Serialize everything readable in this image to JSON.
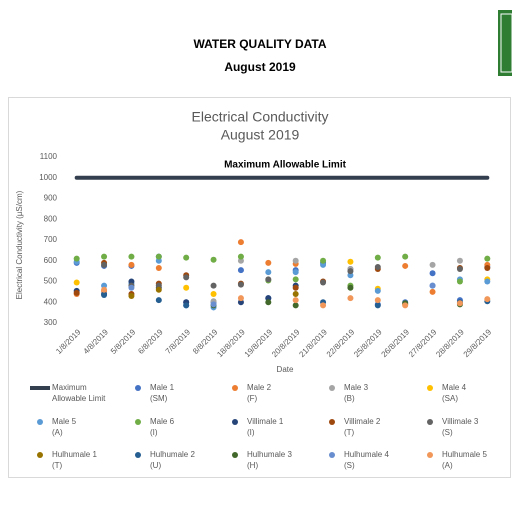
{
  "header": {
    "title": "WATER QUALITY DATA",
    "subtitle": "August 2019"
  },
  "chart_data": {
    "type": "scatter",
    "title": "Electrical Conductivity",
    "subtitle": "August 2019",
    "y_label": "Electrical Conductivity (µS/cm)",
    "x_label": "Date",
    "annotation": "Maximum Allowable Limit",
    "categories": [
      "1/8/2019",
      "4/8/2019",
      "5/8/2019",
      "6/8/2019",
      "7/8/2019",
      "8/8/2019",
      "18/8/2019",
      "19/8/2019",
      "20/8/2019",
      "21/8/2019",
      "22/8/2019",
      "25/8/2019",
      "26/8/2019",
      "27/8/2019",
      "28/8/2019",
      "29/8/2019"
    ],
    "ylim": [
      300,
      1100
    ],
    "yticks": [
      300,
      400,
      500,
      600,
      700,
      800,
      900,
      1000,
      1100
    ],
    "grid": false,
    "series": [
      {
        "name": "Maximum Allowable Limit",
        "color": "#333f4f",
        "kind": "line",
        "values": [
          1000,
          1000,
          1000,
          1000,
          1000,
          1000,
          1000,
          1000,
          1000,
          1000,
          1000,
          1000,
          1000,
          1000,
          1000,
          1000
        ]
      },
      {
        "name": "Male 1 (SM)",
        "color": "#4472c4",
        "values": [
          590,
          575,
          575,
          620,
          400,
          400,
          555,
          420,
          555,
          590,
          560,
          390,
          400,
          540,
          410,
          570
        ]
      },
      {
        "name": "Male 2 (F)",
        "color": "#ed7d31",
        "values": [
          440,
          455,
          580,
          565,
          null,
          null,
          690,
          590,
          585,
          null,
          null,
          null,
          575,
          450,
          null,
          580
        ]
      },
      {
        "name": "Male 3 (B)",
        "color": "#a5a5a5",
        "values": [
          null,
          null,
          null,
          null,
          null,
          405,
          600,
          null,
          600,
          null,
          560,
          null,
          null,
          580,
          600,
          null
        ]
      },
      {
        "name": "Male 4 (SA)",
        "color": "#ffc000",
        "values": [
          495,
          null,
          null,
          null,
          470,
          440,
          null,
          null,
          null,
          null,
          595,
          465,
          null,
          null,
          null,
          510
        ]
      },
      {
        "name": "Male 5 (A)",
        "color": "#5b9bd5",
        "values": [
          595,
          480,
          490,
          600,
          385,
          375,
          null,
          545,
          545,
          580,
          530,
          455,
          null,
          480,
          510,
          500
        ]
      },
      {
        "name": "Male 6 (I)",
        "color": "#70ad47",
        "values": [
          610,
          620,
          620,
          620,
          615,
          605,
          620,
          505,
          510,
          600,
          480,
          615,
          620,
          null,
          500,
          610
        ]
      },
      {
        "name": "Villimale 1 (I)",
        "color": "#264478",
        "values": [
          455,
          440,
          500,
          470,
          400,
          null,
          400,
          420,
          480,
          null,
          null,
          null,
          null,
          null,
          null,
          null
        ]
      },
      {
        "name": "Villimale 2 (T)",
        "color": "#9e480e",
        "values": [
          445,
          590,
          440,
          490,
          530,
          null,
          490,
          null,
          470,
          500,
          null,
          560,
          null,
          null,
          565,
          565
        ]
      },
      {
        "name": "Villimale 3 (S)",
        "color": "#636363",
        "values": [
          null,
          580,
          480,
          480,
          520,
          480,
          485,
          510,
          null,
          495,
          550,
          570,
          null,
          null,
          560,
          null
        ]
      },
      {
        "name": "Hulhumale 1 (T)",
        "color": "#997300",
        "values": [
          null,
          null,
          430,
          460,
          null,
          null,
          null,
          null,
          440,
          null,
          null,
          null,
          390,
          null,
          null,
          null
        ]
      },
      {
        "name": "Hulhumale 2 (U)",
        "color": "#255e91",
        "values": [
          null,
          435,
          null,
          410,
          385,
          null,
          null,
          null,
          null,
          400,
          null,
          385,
          null,
          null,
          400,
          405
        ]
      },
      {
        "name": "Hulhumale 3 (H)",
        "color": "#43682b",
        "values": [
          null,
          null,
          null,
          null,
          null,
          385,
          null,
          400,
          385,
          null,
          470,
          null,
          395,
          null,
          390,
          null
        ]
      },
      {
        "name": "Hulhumale 4 (S)",
        "color": "#698ed0",
        "values": [
          null,
          null,
          470,
          null,
          null,
          390,
          null,
          null,
          null,
          null,
          null,
          null,
          null,
          480,
          null,
          null
        ]
      },
      {
        "name": "Hulhumale 5 (A)",
        "color": "#f1975a",
        "values": [
          null,
          460,
          null,
          null,
          null,
          null,
          420,
          null,
          410,
          385,
          420,
          410,
          385,
          null,
          395,
          415
        ]
      }
    ]
  }
}
